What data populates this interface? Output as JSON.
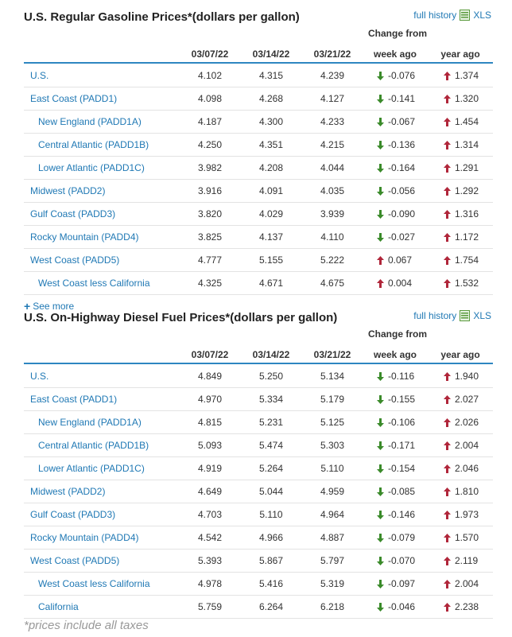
{
  "history_link": "full history",
  "xls_label": "XLS",
  "change_from": "Change from",
  "columns": [
    "03/07/22",
    "03/14/22",
    "03/21/22",
    "week ago",
    "year ago"
  ],
  "colors": {
    "link": "#1f78b4",
    "down": "#3a8a2a",
    "up": "#b0263a",
    "rule": "#2e86c1"
  },
  "see_more": "See more",
  "footnote": "*prices include all taxes",
  "gasoline": {
    "title": "U.S. Regular Gasoline Prices*(dollars per gallon)",
    "rows": [
      {
        "label": "U.S.",
        "v1": "4.102",
        "v2": "4.315",
        "v3": "4.239",
        "wk": "-0.076",
        "wk_dir": "down",
        "yr": "1.374",
        "yr_dir": "up"
      },
      {
        "label": "East Coast (PADD1)",
        "v1": "4.098",
        "v2": "4.268",
        "v3": "4.127",
        "wk": "-0.141",
        "wk_dir": "down",
        "yr": "1.320",
        "yr_dir": "up"
      },
      {
        "label": "New England (PADD1A)",
        "v1": "4.187",
        "v2": "4.300",
        "v3": "4.233",
        "wk": "-0.067",
        "wk_dir": "down",
        "yr": "1.454",
        "yr_dir": "up",
        "sub": true
      },
      {
        "label": "Central Atlantic (PADD1B)",
        "v1": "4.250",
        "v2": "4.351",
        "v3": "4.215",
        "wk": "-0.136",
        "wk_dir": "down",
        "yr": "1.314",
        "yr_dir": "up",
        "sub": true
      },
      {
        "label": "Lower Atlantic (PADD1C)",
        "v1": "3.982",
        "v2": "4.208",
        "v3": "4.044",
        "wk": "-0.164",
        "wk_dir": "down",
        "yr": "1.291",
        "yr_dir": "up",
        "sub": true
      },
      {
        "label": "Midwest (PADD2)",
        "v1": "3.916",
        "v2": "4.091",
        "v3": "4.035",
        "wk": "-0.056",
        "wk_dir": "down",
        "yr": "1.292",
        "yr_dir": "up"
      },
      {
        "label": "Gulf Coast (PADD3)",
        "v1": "3.820",
        "v2": "4.029",
        "v3": "3.939",
        "wk": "-0.090",
        "wk_dir": "down",
        "yr": "1.316",
        "yr_dir": "up"
      },
      {
        "label": "Rocky Mountain (PADD4)",
        "v1": "3.825",
        "v2": "4.137",
        "v3": "4.110",
        "wk": "-0.027",
        "wk_dir": "down",
        "yr": "1.172",
        "yr_dir": "up"
      },
      {
        "label": "West Coast (PADD5)",
        "v1": "4.777",
        "v2": "5.155",
        "v3": "5.222",
        "wk": "0.067",
        "wk_dir": "up",
        "yr": "1.754",
        "yr_dir": "up"
      },
      {
        "label": "West Coast less California",
        "v1": "4.325",
        "v2": "4.671",
        "v3": "4.675",
        "wk": "0.004",
        "wk_dir": "up",
        "yr": "1.532",
        "yr_dir": "up",
        "sub": true
      }
    ]
  },
  "diesel": {
    "title": "U.S. On-Highway Diesel Fuel Prices*(dollars per gallon)",
    "rows": [
      {
        "label": "U.S.",
        "v1": "4.849",
        "v2": "5.250",
        "v3": "5.134",
        "wk": "-0.116",
        "wk_dir": "down",
        "yr": "1.940",
        "yr_dir": "up"
      },
      {
        "label": "East Coast (PADD1)",
        "v1": "4.970",
        "v2": "5.334",
        "v3": "5.179",
        "wk": "-0.155",
        "wk_dir": "down",
        "yr": "2.027",
        "yr_dir": "up"
      },
      {
        "label": "New England (PADD1A)",
        "v1": "4.815",
        "v2": "5.231",
        "v3": "5.125",
        "wk": "-0.106",
        "wk_dir": "down",
        "yr": "2.026",
        "yr_dir": "up",
        "sub": true
      },
      {
        "label": "Central Atlantic (PADD1B)",
        "v1": "5.093",
        "v2": "5.474",
        "v3": "5.303",
        "wk": "-0.171",
        "wk_dir": "down",
        "yr": "2.004",
        "yr_dir": "up",
        "sub": true
      },
      {
        "label": "Lower Atlantic (PADD1C)",
        "v1": "4.919",
        "v2": "5.264",
        "v3": "5.110",
        "wk": "-0.154",
        "wk_dir": "down",
        "yr": "2.046",
        "yr_dir": "up",
        "sub": true
      },
      {
        "label": "Midwest (PADD2)",
        "v1": "4.649",
        "v2": "5.044",
        "v3": "4.959",
        "wk": "-0.085",
        "wk_dir": "down",
        "yr": "1.810",
        "yr_dir": "up"
      },
      {
        "label": "Gulf Coast (PADD3)",
        "v1": "4.703",
        "v2": "5.110",
        "v3": "4.964",
        "wk": "-0.146",
        "wk_dir": "down",
        "yr": "1.973",
        "yr_dir": "up"
      },
      {
        "label": "Rocky Mountain (PADD4)",
        "v1": "4.542",
        "v2": "4.966",
        "v3": "4.887",
        "wk": "-0.079",
        "wk_dir": "down",
        "yr": "1.570",
        "yr_dir": "up"
      },
      {
        "label": "West Coast (PADD5)",
        "v1": "5.393",
        "v2": "5.867",
        "v3": "5.797",
        "wk": "-0.070",
        "wk_dir": "down",
        "yr": "2.119",
        "yr_dir": "up"
      },
      {
        "label": "West Coast less California",
        "v1": "4.978",
        "v2": "5.416",
        "v3": "5.319",
        "wk": "-0.097",
        "wk_dir": "down",
        "yr": "2.004",
        "yr_dir": "up",
        "sub": true
      },
      {
        "label": "California",
        "v1": "5.759",
        "v2": "6.264",
        "v3": "6.218",
        "wk": "-0.046",
        "wk_dir": "down",
        "yr": "2.238",
        "yr_dir": "up",
        "sub": true
      }
    ]
  }
}
